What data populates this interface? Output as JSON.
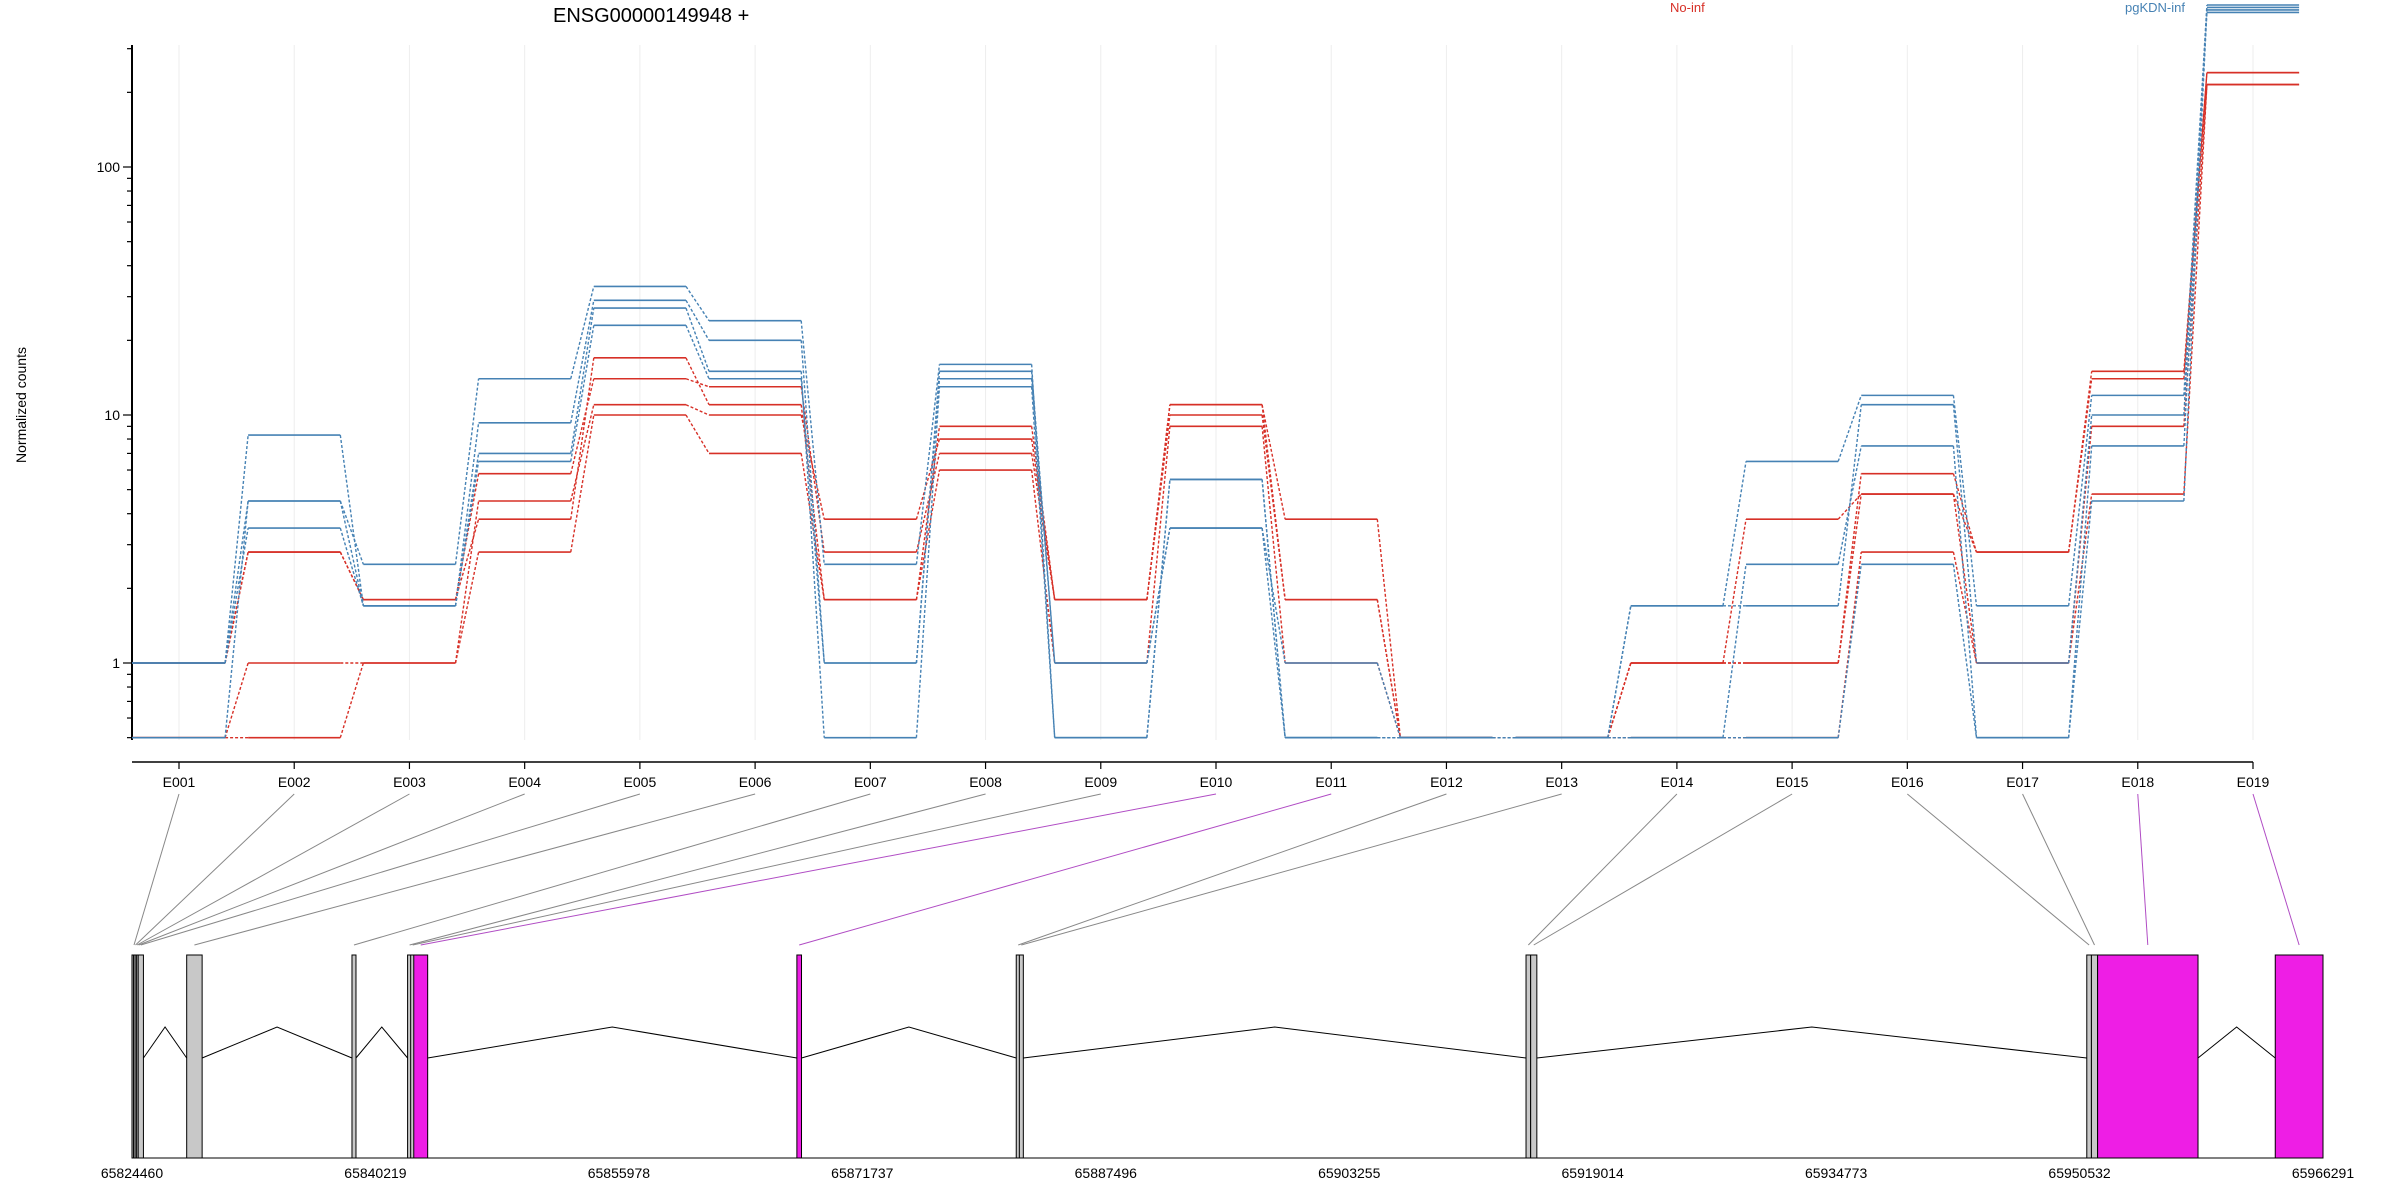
{
  "chart_data": {
    "type": "line",
    "title": "ENSG00000149948 +",
    "ylabel": "Normalized counts",
    "yscale": "log",
    "yticks": [
      1,
      10,
      100
    ],
    "ytick_labels": [
      "1",
      "10",
      "100"
    ],
    "categories": [
      "E001",
      "E002",
      "E003",
      "E004",
      "E005",
      "E006",
      "E007",
      "E008",
      "E009",
      "E010",
      "E011",
      "E012",
      "E013",
      "E014",
      "E015",
      "E016",
      "E017",
      "E018",
      "E019"
    ],
    "legend": [
      "No-inf",
      "pgKDN-inf"
    ],
    "colors": {
      "No-inf": "#d73027",
      "pgKDN-inf": "#4682b4"
    },
    "series": [
      {
        "group": "No-inf",
        "values": [
          1,
          2.8,
          1.8,
          5.8,
          14,
          13,
          2.8,
          7,
          1.8,
          10,
          1.8,
          0.5,
          0.5,
          1,
          1,
          5.8,
          2.8,
          14,
          240
        ]
      },
      {
        "group": "No-inf",
        "values": [
          0.5,
          1,
          1,
          4.5,
          11,
          10,
          3.8,
          8,
          1.8,
          11,
          3.8,
          0.5,
          0.5,
          1,
          3.8,
          4.8,
          1,
          9,
          215
        ]
      },
      {
        "group": "No-inf",
        "values": [
          0.5,
          0.5,
          1,
          2.8,
          10,
          7,
          1.8,
          6,
          1,
          9,
          1,
          0.5,
          0.5,
          0.5,
          0.5,
          2.8,
          1,
          4.8,
          215
        ]
      },
      {
        "group": "No-inf",
        "values": [
          1,
          2.8,
          1.8,
          3.8,
          17,
          11,
          1.8,
          9,
          1.8,
          11,
          1.8,
          0.5,
          0.5,
          1,
          1,
          4.8,
          2.8,
          15,
          240
        ]
      },
      {
        "group": "pgKDN-inf",
        "values": [
          0.5,
          4.5,
          2.5,
          14,
          33,
          24,
          2.5,
          16,
          0.5,
          5.5,
          0.5,
          0.5,
          0.5,
          1.7,
          6.5,
          12,
          1.7,
          12,
          450
        ]
      },
      {
        "group": "pgKDN-inf",
        "values": [
          1,
          8.3,
          1.7,
          9.3,
          29,
          20,
          1,
          15,
          1,
          3.5,
          1,
          0.5,
          0.5,
          1.7,
          1.7,
          11,
          1,
          10,
          430
        ]
      },
      {
        "group": "pgKDN-inf",
        "values": [
          1,
          4.5,
          1.7,
          7,
          27,
          15,
          0.5,
          13,
          0.5,
          5.5,
          0.5,
          0.5,
          0.5,
          0.5,
          2.5,
          7.5,
          0.5,
          7.5,
          420
        ]
      },
      {
        "group": "pgKDN-inf",
        "values": [
          1,
          3.5,
          1.7,
          6.5,
          23,
          14,
          1,
          14,
          1,
          3.5,
          0.5,
          0.5,
          0.5,
          0.5,
          0.5,
          2.5,
          0.5,
          4.5,
          440
        ]
      }
    ],
    "gene_model": {
      "coordinate_ticks": [
        "65824460",
        "65840219",
        "65855978",
        "65871737",
        "65887496",
        "65903255",
        "65919014",
        "65934773",
        "65950532",
        "65966291"
      ],
      "coord_min": 65824460,
      "coord_max": 65966291,
      "exons": [
        {
          "label": "E001",
          "start": 65824460,
          "end": 65824560,
          "highlight": false
        },
        {
          "label": "E002",
          "start": 65824560,
          "end": 65824660,
          "highlight": false
        },
        {
          "label": "E003",
          "start": 65824660,
          "end": 65824760,
          "highlight": false
        },
        {
          "label": "E004",
          "start": 65824760,
          "end": 65824860,
          "highlight": false
        },
        {
          "label": "E005",
          "start": 65824860,
          "end": 65825200,
          "highlight": false
        },
        {
          "label": "E006",
          "start": 65828000,
          "end": 65829000,
          "highlight": false
        },
        {
          "label": "E007",
          "start": 65838700,
          "end": 65838800,
          "highlight": false
        },
        {
          "label": "E008",
          "start": 65842300,
          "end": 65842500,
          "highlight": false
        },
        {
          "label": "E009",
          "start": 65842500,
          "end": 65842700,
          "highlight": false
        },
        {
          "label": "E010",
          "start": 65842700,
          "end": 65843600,
          "highlight": true
        },
        {
          "label": "E011",
          "start": 65867500,
          "end": 65867800,
          "highlight": true
        },
        {
          "label": "E012",
          "start": 65881700,
          "end": 65881900,
          "highlight": false
        },
        {
          "label": "E013",
          "start": 65881900,
          "end": 65882100,
          "highlight": false
        },
        {
          "label": "E014",
          "start": 65914700,
          "end": 65915000,
          "highlight": false
        },
        {
          "label": "E015",
          "start": 65915000,
          "end": 65915400,
          "highlight": false
        },
        {
          "label": "E016",
          "start": 65951000,
          "end": 65951300,
          "highlight": false
        },
        {
          "label": "E017",
          "start": 65951300,
          "end": 65951700,
          "highlight": false
        },
        {
          "label": "E018",
          "start": 65951700,
          "end": 65958200,
          "highlight": true
        },
        {
          "label": "E019",
          "start": 65963200,
          "end": 65966291,
          "highlight": true
        }
      ]
    }
  }
}
